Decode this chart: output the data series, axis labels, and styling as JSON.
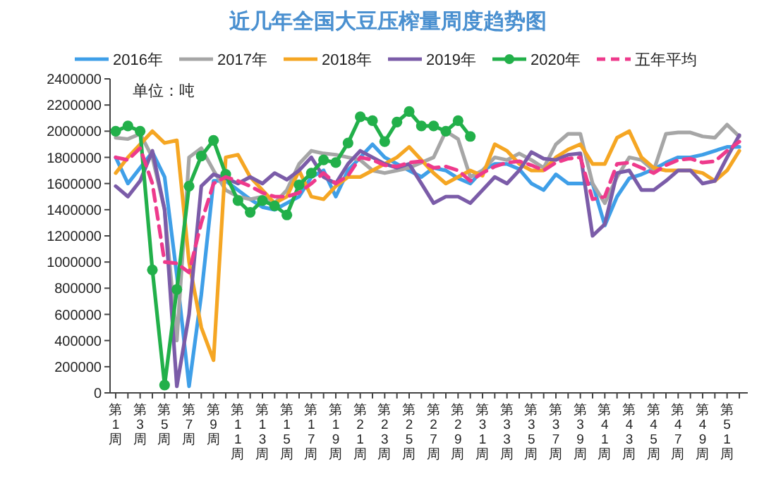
{
  "chart_data": {
    "type": "line",
    "title": "近几年全国大豆压榨量周度趋势图",
    "annotations": [
      "单位：吨"
    ],
    "categories": [
      "第1周",
      null,
      "第3周",
      null,
      "第5周",
      null,
      "第7周",
      null,
      "第9周",
      null,
      "第11周",
      null,
      "第13周",
      null,
      "第15周",
      null,
      "第17周",
      null,
      "第19周",
      null,
      "第21周",
      null,
      "第23周",
      null,
      "第25周",
      null,
      "第27周",
      null,
      "第29周",
      null,
      "第31周",
      null,
      "第33周",
      null,
      "第35周",
      null,
      "第37周",
      null,
      "第39周",
      null,
      "第41周",
      null,
      "第43周",
      null,
      "第45周",
      null,
      "第47周",
      null,
      "第49周",
      null,
      "第51周",
      null
    ],
    "ylim": [
      0,
      2400000
    ],
    "yticks": [
      0,
      200000,
      400000,
      600000,
      800000,
      1000000,
      1200000,
      1400000,
      1600000,
      1800000,
      2000000,
      2200000,
      2400000
    ],
    "grid": false,
    "legend": "top",
    "series": [
      {
        "name": "2016年",
        "color": "#3f9fe8",
        "marker": "none",
        "line_style": "solid",
        "values": [
          1800000,
          1600000,
          1720000,
          1840000,
          1650000,
          900000,
          50000,
          750000,
          1620000,
          1620000,
          1550000,
          1480000,
          1420000,
          1400000,
          1450000,
          1500000,
          1650000,
          1700000,
          1500000,
          1700000,
          1800000,
          1900000,
          1800000,
          1750000,
          1700000,
          1650000,
          1720000,
          1700000,
          1640000,
          1600000,
          1700000,
          1750000,
          1750000,
          1710000,
          1600000,
          1550000,
          1670000,
          1600000,
          1600000,
          1600000,
          1280000,
          1500000,
          1640000,
          1670000,
          1710000,
          1760000,
          1800000,
          1800000,
          1820000,
          1850000,
          1880000,
          1880000
        ]
      },
      {
        "name": "2017年",
        "color": "#a6a6a6",
        "marker": "none",
        "line_style": "solid",
        "values": [
          1950000,
          1940000,
          1980000,
          1800000,
          1400000,
          400000,
          1800000,
          1870000,
          1700000,
          1550000,
          1500000,
          1480000,
          1500000,
          1450000,
          1550000,
          1750000,
          1850000,
          1830000,
          1820000,
          1800000,
          1780000,
          1700000,
          1680000,
          1700000,
          1720000,
          1760000,
          1800000,
          2000000,
          1940000,
          1650000,
          1700000,
          1800000,
          1780000,
          1830000,
          1780000,
          1720000,
          1900000,
          1980000,
          1980000,
          1600000,
          1450000,
          1650000,
          1800000,
          1780000,
          1700000,
          1980000,
          1990000,
          1990000,
          1960000,
          1950000,
          2050000,
          1960000
        ]
      },
      {
        "name": "2018年",
        "color": "#f5a623",
        "marker": "none",
        "line_style": "solid",
        "values": [
          1680000,
          1800000,
          1900000,
          2000000,
          1910000,
          1930000,
          1000000,
          500000,
          250000,
          1800000,
          1820000,
          1650000,
          1550000,
          1450000,
          1500000,
          1700000,
          1500000,
          1480000,
          1580000,
          1650000,
          1650000,
          1700000,
          1750000,
          1800000,
          1880000,
          1780000,
          1680000,
          1600000,
          1650000,
          1700000,
          1660000,
          1900000,
          1850000,
          1750000,
          1700000,
          1700000,
          1800000,
          1860000,
          1900000,
          1750000,
          1750000,
          1950000,
          2000000,
          1800000,
          1720000,
          1700000,
          1700000,
          1700000,
          1680000,
          1620000,
          1700000,
          1850000
        ]
      },
      {
        "name": "2019年",
        "color": "#7b5ca8",
        "marker": "none",
        "line_style": "solid",
        "values": [
          1580000,
          1500000,
          1620000,
          1850000,
          1400000,
          50000,
          600000,
          1580000,
          1670000,
          1640000,
          1600000,
          1650000,
          1600000,
          1680000,
          1630000,
          1700000,
          1800000,
          1650000,
          1600000,
          1750000,
          1850000,
          1800000,
          1750000,
          1720000,
          1750000,
          1600000,
          1450000,
          1500000,
          1500000,
          1450000,
          1550000,
          1650000,
          1600000,
          1700000,
          1840000,
          1790000,
          1780000,
          1820000,
          1830000,
          1200000,
          1290000,
          1680000,
          1700000,
          1550000,
          1550000,
          1620000,
          1700000,
          1700000,
          1600000,
          1620000,
          1800000,
          1970000
        ]
      },
      {
        "name": "2020年",
        "color": "#22b04a",
        "marker": "circle",
        "line_style": "solid",
        "values": [
          2000000,
          2040000,
          2000000,
          940000,
          60000,
          790000,
          1580000,
          1810000,
          1930000,
          1670000,
          1470000,
          1380000,
          1470000,
          1430000,
          1360000,
          1590000,
          1680000,
          1780000,
          1760000,
          1910000,
          2110000,
          2080000,
          1920000,
          2070000,
          2150000,
          2040000,
          2040000,
          2000000,
          2080000,
          1960000,
          null,
          null,
          null,
          null,
          null,
          null,
          null,
          null,
          null,
          null,
          null,
          null,
          null,
          null,
          null,
          null,
          null,
          null,
          null,
          null,
          null,
          null
        ]
      },
      {
        "name": "五年平均",
        "color": "#ee3a8c",
        "marker": "none",
        "line_style": "dashed",
        "values": [
          1800000,
          1780000,
          1870000,
          1600000,
          1000000,
          990000,
          920000,
          1300000,
          1600000,
          1650000,
          1620000,
          1580000,
          1530000,
          1500000,
          1500000,
          1530000,
          1600000,
          1680000,
          1600000,
          1660000,
          1800000,
          1780000,
          1740000,
          1730000,
          1760000,
          1770000,
          1720000,
          1730000,
          1700000,
          1620000,
          1680000,
          1730000,
          1760000,
          1770000,
          1740000,
          1700000,
          1760000,
          1790000,
          1800000,
          1480000,
          1500000,
          1750000,
          1760000,
          1720000,
          1680000,
          1740000,
          1780000,
          1790000,
          1760000,
          1770000,
          1850000,
          1920000
        ]
      }
    ]
  }
}
